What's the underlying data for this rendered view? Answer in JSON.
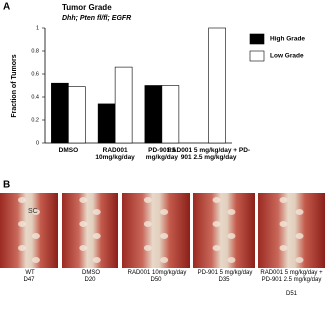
{
  "panels": [
    "A",
    "B"
  ],
  "chart_data": {
    "type": "bar",
    "title": "Tumor Grade",
    "subtitle": "Dhh; Pten fl/fl; EGFR",
    "ylabel": "Fraction of Tumors",
    "categories": [
      "DMSO",
      "RAD001 10mg/kg/day",
      "PD-901 5 mg/kg/day",
      "RAD001 5 mg/kg/day + PD-901 2.5 mg/kg/day"
    ],
    "series": [
      {
        "name": "High Grade",
        "color": "#000000",
        "values": [
          0.52,
          0.34,
          0.5,
          0
        ]
      },
      {
        "name": "Low Grade",
        "color": "#ffffff",
        "values": [
          0.49,
          0.66,
          0.5,
          1.0
        ]
      }
    ],
    "ylim": [
      0,
      1
    ],
    "yticks": [
      0,
      0.2,
      0.4,
      0.6,
      0.8,
      1
    ],
    "grid": false,
    "legend": "right"
  },
  "photos": {
    "annotation": "SC",
    "items": [
      {
        "label": "WT",
        "day": "D47"
      },
      {
        "label": "DMSO",
        "day": "D20"
      },
      {
        "label": "RAD001 10mg/kg/day",
        "day": "D50"
      },
      {
        "label": "PD-901 5 mg/kg/day",
        "day": "D35"
      },
      {
        "label": "RAD001 5 mg/kg/day + PD-901 2.5 mg/kg/day",
        "day": "D51"
      }
    ]
  }
}
